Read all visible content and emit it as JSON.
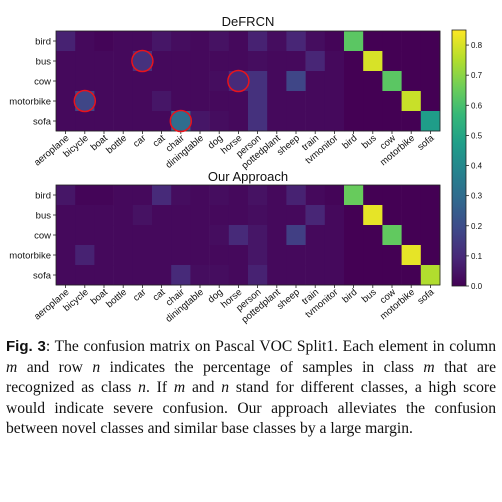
{
  "figure": {
    "panels": [
      {
        "title": "DeFRCN",
        "rows": [
          "bird",
          "bus",
          "cow",
          "motorbike",
          "sofa"
        ],
        "cols": [
          "aeroplane",
          "bicycle",
          "boat",
          "bottle",
          "car",
          "cat",
          "chair",
          "diningtable",
          "dog",
          "horse",
          "person",
          "pottedplant",
          "sheep",
          "train",
          "tvmonitor",
          "bird",
          "bus",
          "cow",
          "motorbike",
          "sofa"
        ],
        "values": [
          [
            0.08,
            0.02,
            0.01,
            0.02,
            0.02,
            0.05,
            0.03,
            0.02,
            0.04,
            0.02,
            0.08,
            0.03,
            0.09,
            0.03,
            0.01,
            0.63,
            0.0,
            0.0,
            0.0,
            0.0
          ],
          [
            0.02,
            0.02,
            0.02,
            0.02,
            0.12,
            0.02,
            0.02,
            0.02,
            0.02,
            0.02,
            0.03,
            0.02,
            0.02,
            0.09,
            0.02,
            0.0,
            0.8,
            0.0,
            0.0,
            0.0
          ],
          [
            0.02,
            0.02,
            0.02,
            0.02,
            0.02,
            0.02,
            0.02,
            0.02,
            0.03,
            0.1,
            0.12,
            0.02,
            0.18,
            0.02,
            0.02,
            0.0,
            0.0,
            0.63,
            0.0,
            0.0
          ],
          [
            0.02,
            0.18,
            0.02,
            0.02,
            0.02,
            0.05,
            0.02,
            0.02,
            0.02,
            0.02,
            0.12,
            0.02,
            0.02,
            0.02,
            0.02,
            0.0,
            0.0,
            0.0,
            0.78,
            0.0
          ],
          [
            0.02,
            0.02,
            0.02,
            0.02,
            0.02,
            0.02,
            0.3,
            0.05,
            0.03,
            0.02,
            0.12,
            0.02,
            0.02,
            0.02,
            0.02,
            0.0,
            0.0,
            0.0,
            0.0,
            0.47
          ]
        ],
        "circles": [
          [
            1,
            4
          ],
          [
            2,
            9
          ],
          [
            3,
            1
          ],
          [
            4,
            6
          ]
        ]
      },
      {
        "title": "Our Approach",
        "rows": [
          "bird",
          "bus",
          "cow",
          "motorbike",
          "sofa"
        ],
        "cols": [
          "aeroplane",
          "bicycle",
          "boat",
          "bottle",
          "car",
          "cat",
          "chair",
          "diningtable",
          "dog",
          "horse",
          "person",
          "pottedplant",
          "sheep",
          "train",
          "tvmonitor",
          "bird",
          "bus",
          "cow",
          "motorbike",
          "sofa"
        ],
        "values": [
          [
            0.05,
            0.01,
            0.01,
            0.02,
            0.02,
            0.1,
            0.03,
            0.02,
            0.03,
            0.02,
            0.04,
            0.02,
            0.08,
            0.02,
            0.01,
            0.65,
            0.0,
            0.0,
            0.0,
            0.0
          ],
          [
            0.02,
            0.02,
            0.02,
            0.02,
            0.04,
            0.02,
            0.02,
            0.02,
            0.02,
            0.02,
            0.03,
            0.02,
            0.02,
            0.09,
            0.02,
            0.0,
            0.82,
            0.0,
            0.0,
            0.0
          ],
          [
            0.02,
            0.02,
            0.02,
            0.02,
            0.02,
            0.02,
            0.02,
            0.02,
            0.03,
            0.1,
            0.05,
            0.02,
            0.16,
            0.02,
            0.02,
            0.0,
            0.0,
            0.64,
            0.0,
            0.0
          ],
          [
            0.02,
            0.08,
            0.02,
            0.02,
            0.02,
            0.02,
            0.02,
            0.02,
            0.02,
            0.02,
            0.05,
            0.02,
            0.02,
            0.02,
            0.02,
            0.0,
            0.0,
            0.0,
            0.82,
            0.0
          ],
          [
            0.02,
            0.02,
            0.02,
            0.02,
            0.02,
            0.02,
            0.1,
            0.03,
            0.03,
            0.02,
            0.08,
            0.02,
            0.02,
            0.02,
            0.02,
            0.0,
            0.0,
            0.0,
            0.0,
            0.75
          ]
        ],
        "circles": []
      }
    ],
    "colorbar": {
      "ticks": [
        "0.0",
        "0.1",
        "0.2",
        "0.3",
        "0.4",
        "0.5",
        "0.6",
        "0.7",
        "0.8"
      ],
      "min": 0.0,
      "max": 0.85,
      "colormap": [
        "#440154",
        "#482878",
        "#3e4989",
        "#31688e",
        "#26828e",
        "#1f9e89",
        "#35b779",
        "#6ece58",
        "#b5de2b",
        "#fde725"
      ]
    },
    "circle_color": "#e8141c"
  },
  "caption": {
    "label": "Fig. 3",
    "text_a": ": The confusion matrix on Pascal VOC Split1. Each element in column ",
    "m1": "m",
    "text_b": " and row ",
    "n1": "n",
    "text_c": " indicates the percentage of samples in class ",
    "m2": "m",
    "text_d": " that are recognized as class ",
    "n2": "n",
    "text_e": ". If ",
    "m3": "m",
    "text_f": " and ",
    "n3": "n",
    "text_g": " stand for different classes, a high score would indicate severe confusion. Our approach alleviates the confusion between novel classes and similar base classes by a large margin."
  }
}
